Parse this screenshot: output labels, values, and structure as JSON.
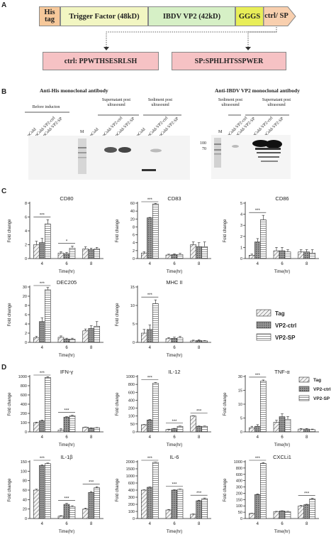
{
  "panel_a": {
    "letter": "A",
    "construct": [
      "His tag",
      "Trigger Factor (48kD)",
      "IBDV VP2 (42kD)",
      "GGGS",
      "ctrl/ SP"
    ],
    "peptide_ctrl": "ctrl: PPWTHSESRLSH",
    "peptide_sp": "SP:SPHLHTSSPWER"
  },
  "panel_b": {
    "letter": "B",
    "left_title": "Anti-His monoclonal antibody",
    "left_groups": [
      "Before inducton",
      "Supernatant post ultrasound",
      "Sediment post ultrasound"
    ],
    "left_lanes": [
      "pCold",
      "pCold-VP2-ctrl",
      "pCold-VP2-SP",
      "M",
      "pCold",
      "pCold-VP2-ctrl",
      "pCold-VP2-SP",
      "pCold",
      "pCold-VP2-ctrl",
      "pCold-VP2-SP"
    ],
    "right_title": "Anti-IBDV VP2 monoclonal antibody",
    "right_groups": [
      "Sediment post ultrasound",
      "Supernatant post ultrasound"
    ],
    "right_lanes": [
      "M",
      "pCold-VP2-ctrl",
      "pCold-VP2-SP",
      "pCold-VP2-ctrl",
      "pCold-VP2-SP"
    ],
    "markers": [
      "100",
      "70"
    ]
  },
  "panel_c": {
    "letter": "C"
  },
  "panel_d": {
    "letter": "D"
  },
  "legend_c": [
    "Tag",
    "VP2-ctrl",
    "VP2-SP"
  ],
  "legend_d": [
    "Tag",
    "VP2-ctrl",
    "VP2-SP"
  ],
  "colors": {
    "tag_fill": "#e9e9e9",
    "ctrl_fill": "#8a8a8a",
    "sp_fill": "#ffffff",
    "his": "#f6c89a",
    "tf": "#f2f6c2",
    "vp2": "#d6f0c6",
    "gggs": "#e8ee58",
    "ctrl": "#f8cfae",
    "peptide": "#f6c2c4"
  },
  "chart_data": [
    {
      "type": "bar",
      "title": "CD80",
      "xlabel": "Time(hr)",
      "ylabel": "Fold change",
      "categories": [
        "4",
        "6",
        "8"
      ],
      "ylim": [
        0,
        8
      ],
      "yticks": [
        "0",
        "2",
        "4",
        "6",
        "8"
      ],
      "series": [
        {
          "name": "Tag",
          "values": [
            2.0,
            0.8,
            1.4
          ]
        },
        {
          "name": "VP2-ctrl",
          "values": [
            2.3,
            0.7,
            1.3
          ]
        },
        {
          "name": "VP2-SP",
          "values": [
            5.0,
            1.5,
            1.4
          ]
        }
      ],
      "errors": [
        [
          0.5,
          0.2,
          0.3
        ],
        [
          0.6,
          0.2,
          0.2
        ],
        [
          0.6,
          0.3,
          0.2
        ]
      ],
      "annotations": [
        {
          "group": "4",
          "text": "***"
        },
        {
          "group": "6",
          "text": "*"
        }
      ]
    },
    {
      "type": "bar",
      "title": "CD83",
      "xlabel": "Time(hr)",
      "ylabel": "Fold change",
      "categories": [
        "4",
        "6",
        "8"
      ],
      "ylim": [
        0,
        60
      ],
      "yticks": [
        "0",
        "2",
        "4",
        "6",
        "8",
        "20",
        "40",
        "60"
      ],
      "series": [
        {
          "name": "Tag",
          "values": [
            1.4,
            0.9,
            3.5
          ]
        },
        {
          "name": "VP2-ctrl",
          "values": [
            23,
            1.0,
            3.0
          ]
        },
        {
          "name": "VP2-SP",
          "values": [
            58,
            1.0,
            3.0
          ]
        }
      ],
      "errors": [
        [
          0.3,
          0.2,
          0.7
        ],
        [
          1.0,
          0.2,
          1.0
        ],
        [
          1.5,
          0.3,
          1.2
        ]
      ],
      "annotations": [
        {
          "group": "4",
          "text": "***"
        }
      ]
    },
    {
      "type": "bar",
      "title": "CD86",
      "xlabel": "Time(hr)",
      "ylabel": "Fold change",
      "categories": [
        "4",
        "6",
        "8"
      ],
      "ylim": [
        0,
        5
      ],
      "yticks": [
        "0",
        "1",
        "2",
        "3",
        "4",
        "5"
      ],
      "series": [
        {
          "name": "Tag",
          "values": [
            0.3,
            0.7,
            0.6
          ]
        },
        {
          "name": "VP2-ctrl",
          "values": [
            1.5,
            0.7,
            0.6
          ]
        },
        {
          "name": "VP2-SP",
          "values": [
            3.5,
            0.6,
            0.5
          ]
        }
      ],
      "errors": [
        [
          0.1,
          0.3,
          0.2
        ],
        [
          0.3,
          0.3,
          0.2
        ],
        [
          0.4,
          0.2,
          0.3
        ]
      ],
      "annotations": [
        {
          "group": "4",
          "text": "***"
        }
      ]
    },
    {
      "type": "bar",
      "title": "DEC205",
      "xlabel": "Time(hr)",
      "ylabel": "Fold change",
      "categories": [
        "4",
        "6",
        "8"
      ],
      "ylim": [
        0,
        30
      ],
      "yticks": [
        "0",
        "2",
        "4",
        "6",
        "8",
        "20",
        "30"
      ],
      "series": [
        {
          "name": "Tag",
          "values": [
            1.0,
            1.1,
            2.5
          ]
        },
        {
          "name": "VP2-ctrl",
          "values": [
            4.5,
            0.7,
            3.0
          ]
        },
        {
          "name": "VP2-SP",
          "values": [
            27,
            0.7,
            3.5
          ]
        }
      ],
      "errors": [
        [
          0.3,
          0.3,
          0.4
        ],
        [
          0.8,
          0.2,
          0.6
        ],
        [
          2.5,
          0.2,
          1.0
        ]
      ],
      "annotations": [
        {
          "group": "4",
          "text": "***"
        }
      ]
    },
    {
      "type": "bar",
      "title": "MHC II",
      "xlabel": "Time(hr)",
      "ylabel": "Fold change",
      "categories": [
        "4",
        "6",
        "8"
      ],
      "ylim": [
        0,
        15
      ],
      "yticks": [
        "0",
        "5",
        "10",
        "15"
      ],
      "series": [
        {
          "name": "Tag",
          "values": [
            2.5,
            1.0,
            0.4
          ]
        },
        {
          "name": "VP2-ctrl",
          "values": [
            3.5,
            1.1,
            0.5
          ]
        },
        {
          "name": "VP2-SP",
          "values": [
            10.5,
            1.2,
            0.4
          ]
        }
      ],
      "errors": [
        [
          1.0,
          0.3,
          0.2
        ],
        [
          1.2,
          0.3,
          0.2
        ],
        [
          1.0,
          0.4,
          0.1
        ]
      ],
      "annotations": [
        {
          "group": "4",
          "text": "***"
        }
      ]
    },
    {
      "type": "bar",
      "title": "IFN-γ",
      "xlabel": "Time(hr)",
      "ylabel": "Fold change",
      "categories": [
        "4",
        "6",
        "8"
      ],
      "ylim": [
        0,
        1000
      ],
      "yticks": [
        "0",
        "100",
        "200",
        "400",
        "600",
        "800",
        "1000"
      ],
      "series": [
        {
          "name": "Tag",
          "values": [
            100,
            20,
            50
          ]
        },
        {
          "name": "VP2-ctrl",
          "values": [
            120,
            160,
            40
          ]
        },
        {
          "name": "VP2-SP",
          "values": [
            980,
            175,
            45
          ]
        }
      ],
      "errors": [
        [
          5,
          15,
          3
        ],
        [
          8,
          5,
          3
        ],
        [
          15,
          6,
          3
        ]
      ],
      "annotations": [
        {
          "group": "4",
          "text": "***"
        },
        {
          "group": "6",
          "text": "***"
        }
      ]
    },
    {
      "type": "bar",
      "title": "IL-12",
      "xlabel": "Time(hr)",
      "ylabel": "Fold change",
      "categories": [
        "4",
        "6",
        "8"
      ],
      "ylim": [
        0,
        1000
      ],
      "yticks": [
        "0",
        "50",
        "100",
        "200",
        "400",
        "600",
        "800",
        "1000"
      ],
      "series": [
        {
          "name": "Tag",
          "values": [
            45,
            15,
            100
          ]
        },
        {
          "name": "VP2-ctrl",
          "values": [
            75,
            20,
            35
          ]
        },
        {
          "name": "VP2-SP",
          "values": [
            830,
            35,
            35
          ]
        }
      ],
      "errors": [
        [
          2,
          2,
          3
        ],
        [
          3,
          2,
          2
        ],
        [
          15,
          2,
          2
        ]
      ],
      "annotations": [
        {
          "group": "4",
          "text": "***"
        },
        {
          "group": "6",
          "text": "***"
        },
        {
          "group": "8",
          "text": "***"
        }
      ]
    },
    {
      "type": "bar",
      "title": "TNF-α",
      "xlabel": "Time(hr)",
      "ylabel": "Fold change",
      "categories": [
        "4",
        "6",
        "8"
      ],
      "ylim": [
        0,
        30
      ],
      "yticks": [
        "0",
        "5",
        "10",
        "15",
        "30"
      ],
      "series": [
        {
          "name": "Tag",
          "values": [
            1.5,
            3.5,
            1.0
          ]
        },
        {
          "name": "VP2-ctrl",
          "values": [
            2.0,
            5.5,
            1.0
          ]
        },
        {
          "name": "VP2-SP",
          "values": [
            25,
            4.5,
            0.8
          ]
        }
      ],
      "errors": [
        [
          0.5,
          0.7,
          0.2
        ],
        [
          0.6,
          1.0,
          0.2
        ],
        [
          1.2,
          1.0,
          0.2
        ]
      ],
      "annotations": [
        {
          "group": "4",
          "text": "***"
        }
      ]
    },
    {
      "type": "bar",
      "title": "IL-1β",
      "xlabel": "Time(hr)",
      "ylabel": "Fold change",
      "categories": [
        "4",
        "6",
        "8"
      ],
      "ylim": [
        0,
        150
      ],
      "yticks": [
        "0",
        "20",
        "40",
        "60",
        "80",
        "100",
        "150"
      ],
      "series": [
        {
          "name": "Tag",
          "values": [
            60,
            5,
            20
          ]
        },
        {
          "name": "VP2-ctrl",
          "values": [
            130,
            30,
            55
          ]
        },
        {
          "name": "VP2-SP",
          "values": [
            140,
            25,
            65
          ]
        }
      ],
      "errors": [
        [
          2,
          1,
          2
        ],
        [
          3,
          2,
          2
        ],
        [
          3,
          2,
          2
        ]
      ],
      "annotations": [
        {
          "group": "4",
          "text": "***"
        },
        {
          "group": "6",
          "text": "***"
        },
        {
          "group": "8",
          "text": "***"
        }
      ]
    },
    {
      "type": "bar",
      "title": "IL-6",
      "xlabel": "Time(hr)",
      "ylabel": "Fold change",
      "categories": [
        "4",
        "6",
        "8"
      ],
      "ylim": [
        0,
        2000
      ],
      "yticks": [
        "0",
        "100",
        "200",
        "300",
        "400",
        "600",
        "1000",
        "1500",
        "2000"
      ],
      "series": [
        {
          "name": "Tag",
          "values": [
            400,
            120,
            60
          ]
        },
        {
          "name": "VP2-ctrl",
          "values": [
            480,
            400,
            250
          ]
        },
        {
          "name": "VP2-SP",
          "values": [
            1950,
            420,
            280
          ]
        }
      ],
      "errors": [
        [
          10,
          8,
          5
        ],
        [
          10,
          10,
          8
        ],
        [
          20,
          10,
          8
        ]
      ],
      "annotations": [
        {
          "group": "4",
          "text": "***"
        },
        {
          "group": "6",
          "text": "***"
        },
        {
          "group": "8",
          "text": "***"
        }
      ]
    },
    {
      "type": "bar",
      "title": "CXCLi1",
      "xlabel": "Time(hr)",
      "ylabel": "Fold change",
      "categories": [
        "4",
        "6",
        "8"
      ],
      "ylim": [
        0,
        1000
      ],
      "yticks": [
        "0",
        "50",
        "100",
        "150",
        "200",
        "300",
        "400",
        "600",
        "800",
        "1000"
      ],
      "series": [
        {
          "name": "Tag",
          "values": [
            40,
            55,
            100
          ]
        },
        {
          "name": "VP2-ctrl",
          "values": [
            190,
            60,
            110
          ]
        },
        {
          "name": "VP2-SP",
          "values": [
            950,
            55,
            155
          ]
        }
      ],
      "errors": [
        [
          2,
          2,
          4
        ],
        [
          5,
          2,
          3
        ],
        [
          20,
          2,
          5
        ]
      ],
      "annotations": [
        {
          "group": "4",
          "text": "***"
        },
        {
          "group": "8",
          "text": "***"
        }
      ]
    }
  ]
}
